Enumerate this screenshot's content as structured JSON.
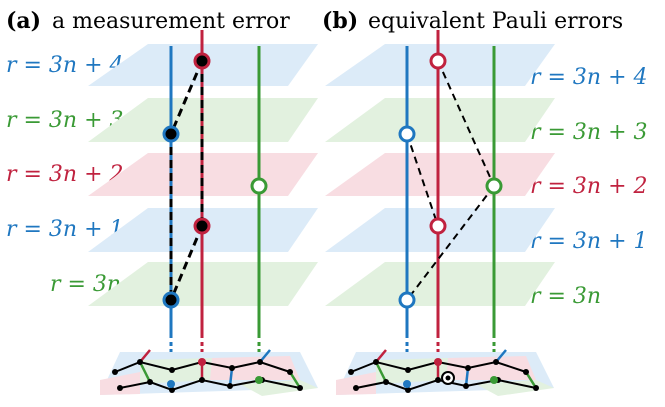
{
  "panels": [
    {
      "tag": "(a)",
      "title": "a measurement error"
    },
    {
      "tag": "(b)",
      "title": "equivalent Pauli errors"
    }
  ],
  "layers": [
    {
      "label": "r = 3n + 4",
      "color": "#1f77c0"
    },
    {
      "label": "r = 3n + 3",
      "color": "#3a9a35"
    },
    {
      "label": "r = 3n + 2",
      "color": "#c0223f"
    },
    {
      "label": "r = 3n + 1",
      "color": "#1f77c0"
    },
    {
      "label": "r = 3n",
      "color": "#3a9a35"
    }
  ],
  "colors": {
    "blue": "#1f77c0",
    "green": "#3a9a35",
    "red": "#c0223f",
    "plane_blue": "#dcebf8",
    "plane_green": "#e2f1df",
    "plane_red": "#f8dde2"
  }
}
